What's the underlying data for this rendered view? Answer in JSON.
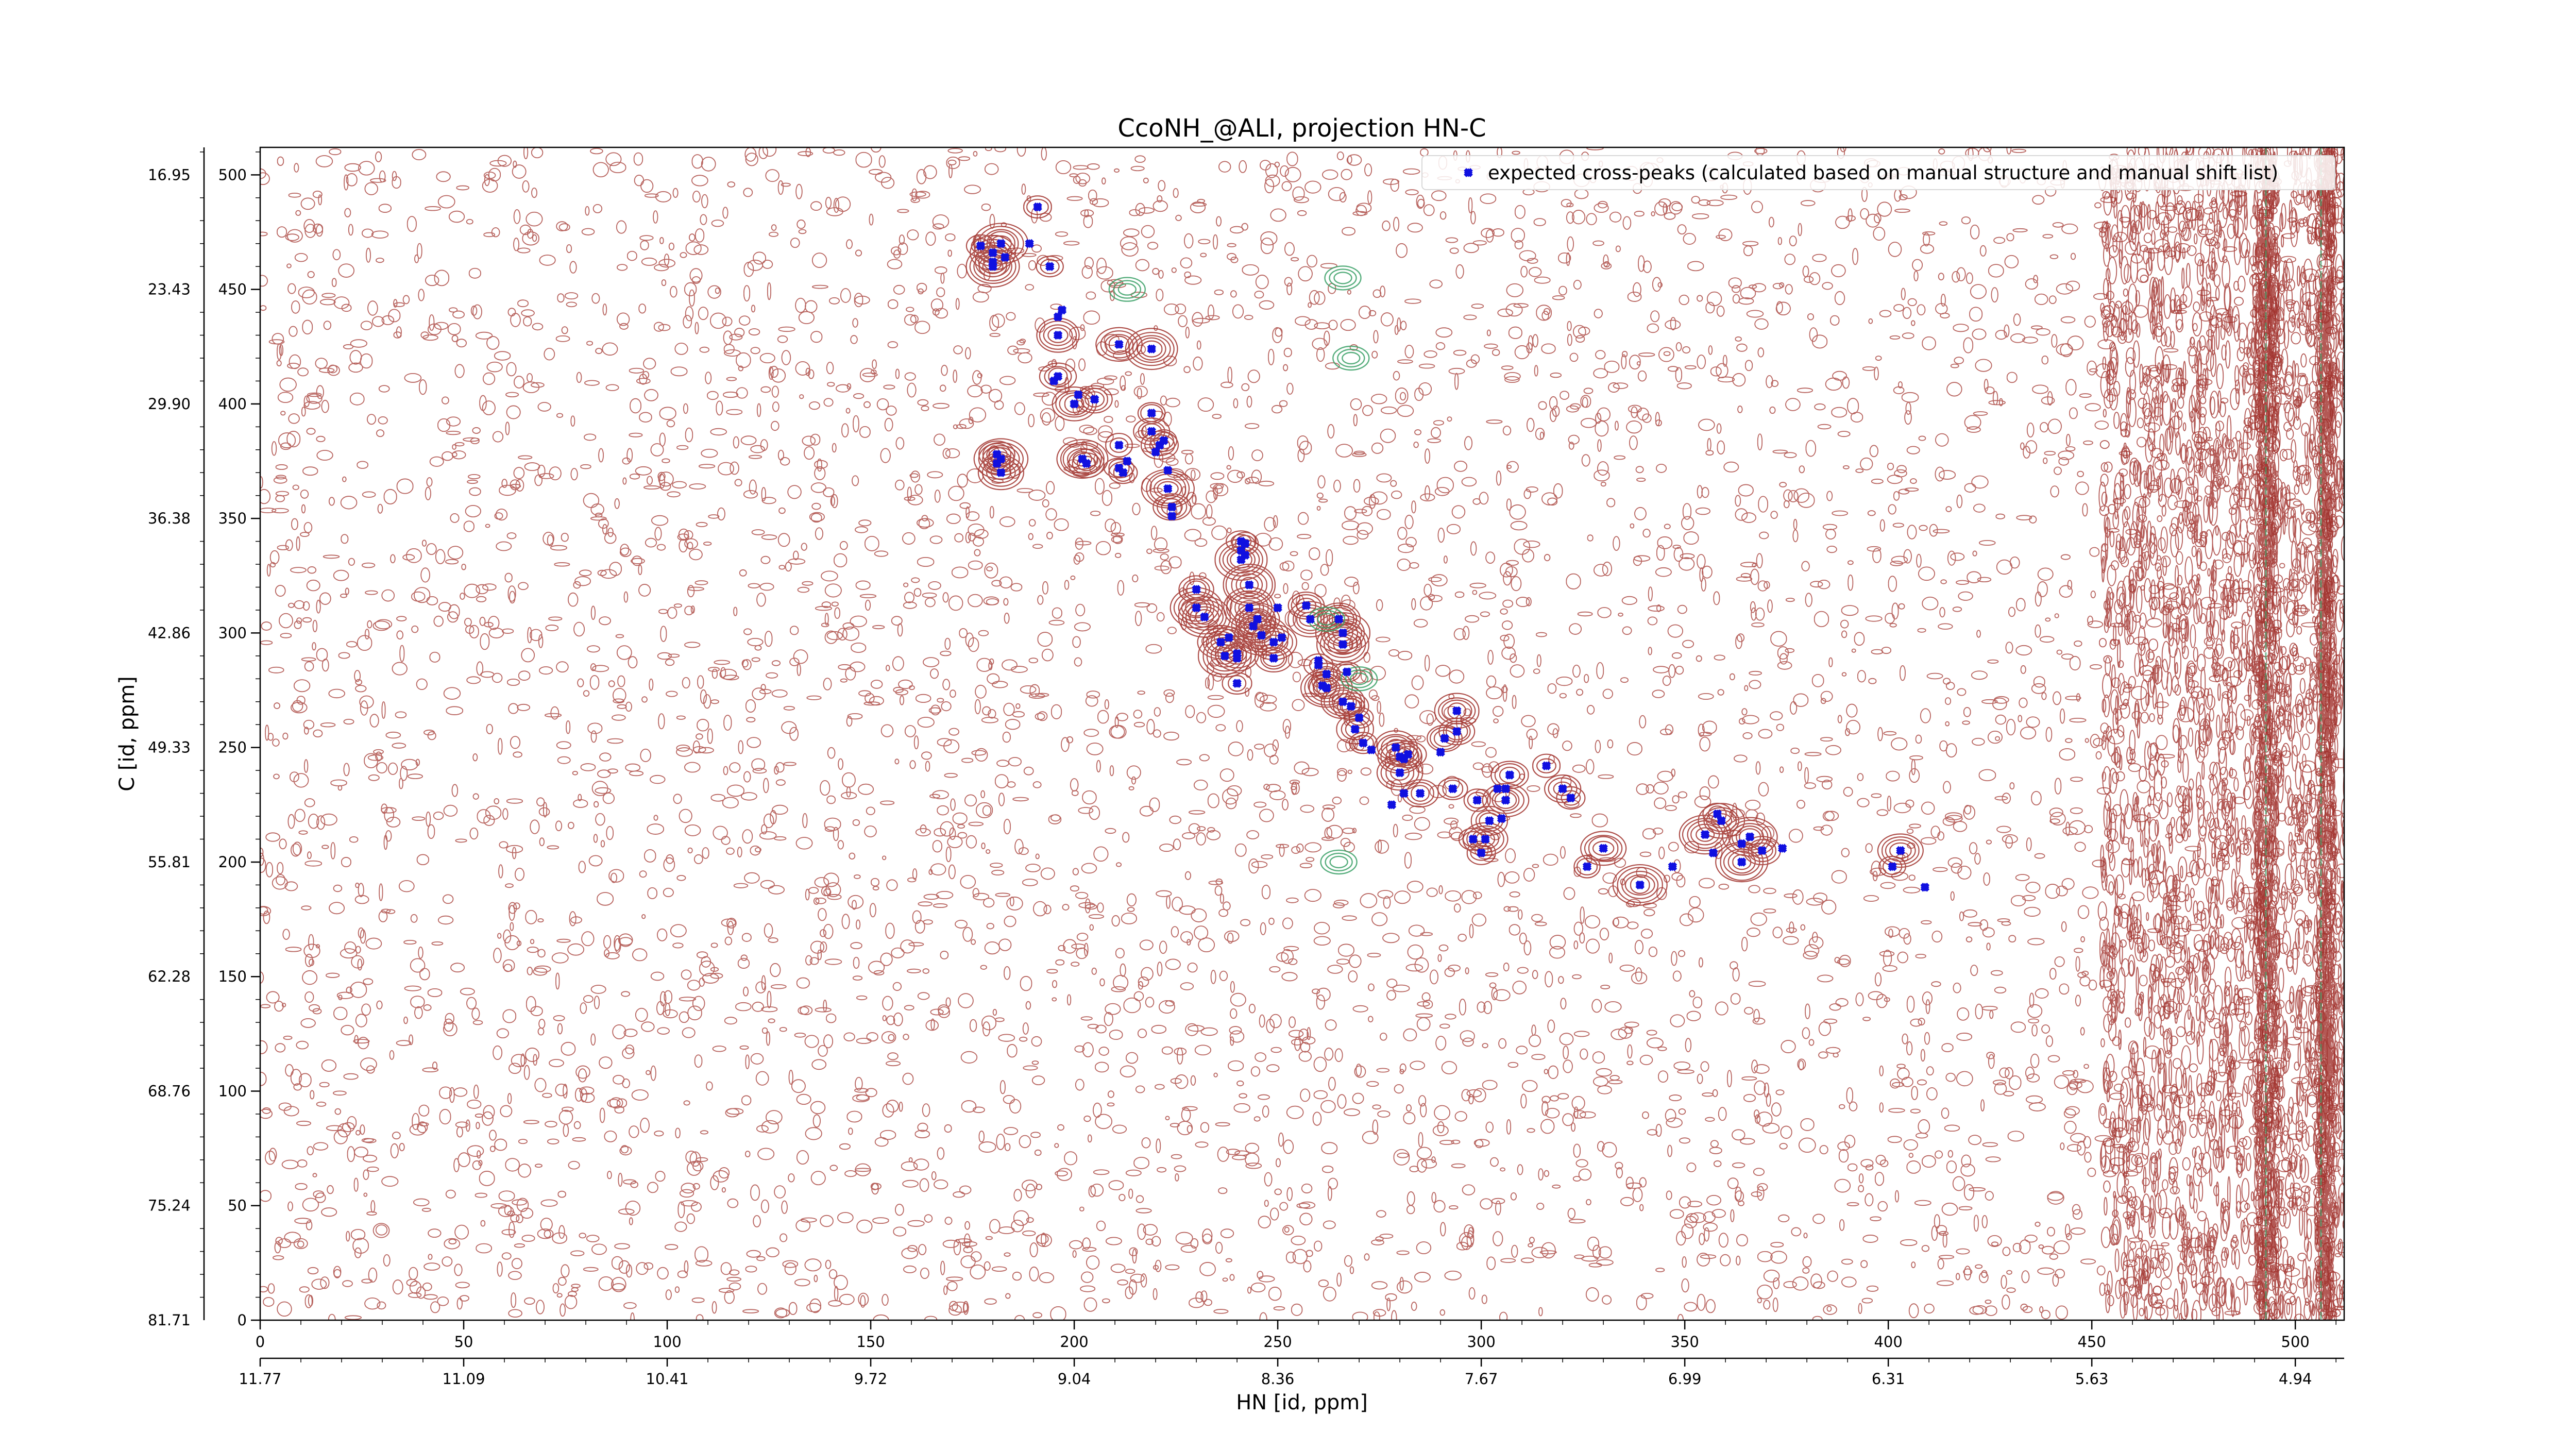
{
  "chart_data": {
    "type": "scatter",
    "title": "CcoNH_@ALI, projection HN-C",
    "xlabel": "HN [id, ppm]",
    "ylabel": "C [id, ppm]",
    "xlim": [
      0,
      512
    ],
    "ylim": [
      0,
      512
    ],
    "x_index_ticks": [
      "0",
      "50",
      "100",
      "150",
      "200",
      "250",
      "300",
      "350",
      "400",
      "450",
      "500"
    ],
    "x_ppm_ticks": [
      "11.77",
      "11.09",
      "10.41",
      "9.72",
      "9.04",
      "8.36",
      "7.67",
      "6.99",
      "6.31",
      "5.63",
      "4.94"
    ],
    "y_index_ticks": [
      "0",
      "50",
      "100",
      "150",
      "200",
      "250",
      "300",
      "350",
      "400",
      "450",
      "500"
    ],
    "y_ppm_ticks": [
      "81.71",
      "75.24",
      "68.76",
      "62.28",
      "55.81",
      "49.33",
      "42.86",
      "36.38",
      "29.90",
      "23.43",
      "16.95"
    ],
    "grid": false,
    "legend_position": "top-right",
    "colors": {
      "marker": "#1010e0",
      "contour_positive": "#a0302a",
      "contour_negative": "#3aa066"
    },
    "series": [
      {
        "name": "expected cross-peaks (calculated based on manual structure and manual shift list)",
        "x": [
          177,
          180,
          182,
          180,
          183,
          180,
          181,
          181,
          182,
          182,
          191,
          189,
          194,
          196,
          196,
          197,
          196,
          195,
          201,
          200,
          205,
          202,
          203,
          211,
          211,
          213,
          212,
          211,
          219,
          219,
          219,
          222,
          221,
          220,
          223,
          223,
          224,
          224,
          230,
          230,
          232,
          236,
          237,
          238,
          240,
          240,
          240,
          241,
          241,
          242,
          242,
          241,
          243,
          243,
          244,
          245,
          246,
          249,
          249,
          251,
          250,
          257,
          258,
          260,
          260,
          261,
          262,
          262,
          266,
          265,
          266,
          266,
          267,
          268,
          268,
          269,
          270,
          271,
          273,
          279,
          281,
          280,
          280,
          282,
          281,
          278,
          285,
          290,
          291,
          293,
          294,
          294,
          299,
          298,
          300,
          301,
          302,
          305,
          304,
          306,
          306,
          307,
          307,
          316,
          320,
          322,
          326,
          330,
          339,
          347,
          355,
          357,
          358,
          359,
          364,
          366,
          369,
          374,
          364,
          401,
          403,
          409
        ],
        "y": [
          469,
          466,
          470,
          462,
          464,
          460,
          378,
          374,
          370,
          376,
          486,
          470,
          460,
          438,
          430,
          441,
          412,
          410,
          404,
          400,
          402,
          376,
          374,
          372,
          382,
          375,
          370,
          426,
          424,
          396,
          388,
          384,
          382,
          379,
          371,
          363,
          351,
          355,
          319,
          311,
          307,
          296,
          290,
          298,
          289,
          278,
          291,
          332,
          336,
          339,
          334,
          340,
          321,
          311,
          303,
          306,
          299,
          289,
          296,
          298,
          311,
          312,
          306,
          286,
          288,
          277,
          282,
          276,
          300,
          306,
          295,
          270,
          283,
          268,
          268,
          258,
          263,
          252,
          249,
          250,
          245,
          239,
          246,
          247,
          230,
          225,
          230,
          248,
          254,
          232,
          257,
          266,
          227,
          210,
          204,
          210,
          218,
          219,
          232,
          232,
          227,
          238,
          238,
          242,
          232,
          228,
          198,
          206,
          190,
          198,
          212,
          204,
          221,
          218,
          208,
          211,
          205,
          206,
          200,
          198,
          205,
          189
        ]
      }
    ]
  }
}
